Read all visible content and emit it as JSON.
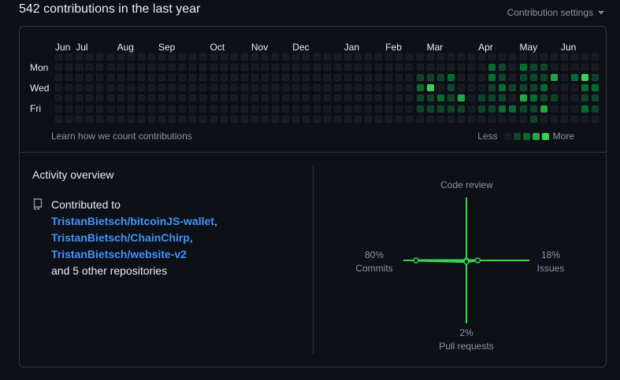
{
  "header": {
    "title": "542 contributions in the last year",
    "settings_label": "Contribution settings"
  },
  "calendar": {
    "months": [
      "Jun",
      "Jul",
      "Aug",
      "Sep",
      "Oct",
      "Nov",
      "Dec",
      "Jan",
      "Feb",
      "Mar",
      "Apr",
      "May",
      "Jun"
    ],
    "month_weeks": [
      0,
      2,
      6,
      10,
      15,
      19,
      23,
      28,
      32,
      36,
      41,
      45,
      49
    ],
    "days": [
      "Mon",
      "Wed",
      "Fri"
    ],
    "weeks": 53,
    "levels": [
      [
        0,
        0,
        0,
        0,
        0,
        0,
        0
      ],
      [
        0,
        0,
        0,
        0,
        0,
        0,
        0
      ],
      [
        0,
        0,
        0,
        0,
        0,
        0,
        0
      ],
      [
        0,
        0,
        0,
        0,
        0,
        0,
        0
      ],
      [
        0,
        0,
        0,
        0,
        0,
        0,
        0
      ],
      [
        0,
        0,
        0,
        0,
        0,
        0,
        0
      ],
      [
        0,
        0,
        0,
        0,
        0,
        0,
        0
      ],
      [
        0,
        0,
        0,
        0,
        0,
        0,
        0
      ],
      [
        0,
        0,
        0,
        0,
        0,
        0,
        0
      ],
      [
        0,
        0,
        0,
        0,
        0,
        0,
        0
      ],
      [
        0,
        0,
        0,
        0,
        0,
        0,
        0
      ],
      [
        0,
        0,
        0,
        0,
        0,
        0,
        0
      ],
      [
        0,
        0,
        0,
        0,
        0,
        0,
        0
      ],
      [
        0,
        0,
        0,
        0,
        0,
        0,
        0
      ],
      [
        0,
        0,
        0,
        0,
        0,
        0,
        0
      ],
      [
        0,
        0,
        0,
        0,
        0,
        0,
        0
      ],
      [
        0,
        0,
        0,
        0,
        0,
        0,
        0
      ],
      [
        0,
        0,
        0,
        0,
        0,
        0,
        0
      ],
      [
        0,
        0,
        0,
        0,
        0,
        0,
        0
      ],
      [
        0,
        0,
        0,
        0,
        0,
        0,
        0
      ],
      [
        0,
        0,
        0,
        0,
        0,
        0,
        0
      ],
      [
        0,
        0,
        0,
        0,
        0,
        0,
        0
      ],
      [
        0,
        0,
        0,
        0,
        0,
        0,
        0
      ],
      [
        0,
        0,
        0,
        0,
        0,
        0,
        0
      ],
      [
        0,
        0,
        0,
        0,
        0,
        0,
        0
      ],
      [
        0,
        0,
        0,
        0,
        0,
        0,
        0
      ],
      [
        0,
        0,
        0,
        0,
        0,
        0,
        0
      ],
      [
        0,
        0,
        0,
        0,
        0,
        0,
        0
      ],
      [
        0,
        0,
        0,
        0,
        0,
        0,
        0
      ],
      [
        0,
        0,
        0,
        0,
        0,
        0,
        0
      ],
      [
        0,
        0,
        0,
        0,
        0,
        0,
        0
      ],
      [
        0,
        0,
        0,
        0,
        0,
        0,
        0
      ],
      [
        0,
        0,
        0,
        0,
        0,
        0,
        0
      ],
      [
        0,
        0,
        0,
        0,
        0,
        0,
        0
      ],
      [
        0,
        0,
        0,
        0,
        0,
        0,
        0
      ],
      [
        0,
        0,
        1,
        2,
        1,
        1,
        0
      ],
      [
        0,
        0,
        1,
        4,
        1,
        1,
        0
      ],
      [
        0,
        0,
        1,
        0,
        2,
        1,
        0
      ],
      [
        0,
        0,
        2,
        1,
        1,
        1,
        0
      ],
      [
        0,
        0,
        0,
        0,
        3,
        1,
        0
      ],
      [
        0,
        0,
        0,
        0,
        0,
        0,
        0
      ],
      [
        0,
        0,
        0,
        0,
        1,
        1,
        0
      ],
      [
        0,
        2,
        2,
        1,
        1,
        1,
        0
      ],
      [
        0,
        1,
        1,
        2,
        1,
        2,
        0
      ],
      [
        0,
        0,
        0,
        1,
        0,
        2,
        0
      ],
      [
        0,
        2,
        1,
        1,
        3,
        1,
        0
      ],
      [
        0,
        1,
        1,
        1,
        2,
        1,
        1
      ],
      [
        0,
        1,
        1,
        2,
        1,
        3,
        0
      ],
      [
        0,
        0,
        3,
        0,
        1,
        0,
        0
      ],
      [
        0,
        0,
        0,
        0,
        0,
        0,
        0
      ],
      [
        0,
        0,
        2,
        0,
        0,
        0,
        0
      ],
      [
        0,
        0,
        4,
        2,
        1,
        2,
        0
      ],
      [
        0,
        0,
        1,
        2,
        1,
        1,
        0
      ]
    ],
    "colors": [
      "#161b22",
      "#0e4429",
      "#006d32",
      "#26a641",
      "#39d353"
    ],
    "learn_label": "Learn how we count contributions",
    "legend_less": "Less",
    "legend_more": "More"
  },
  "activity": {
    "title": "Activity overview",
    "repo_icon": "repo-icon",
    "contributed_prefix": "Contributed to",
    "repos": [
      "TristanBietsch/bitcoinJS-wallet",
      "TristanBietsch/ChainChirp",
      "TristanBietsch/website-v2"
    ],
    "other_repos": "and 5 other repositories",
    "radar": {
      "code_review": {
        "label": "Code review",
        "pct": "",
        "value": 0
      },
      "commits": {
        "label": "Commits",
        "pct": "80%",
        "value": 80
      },
      "issues": {
        "label": "Issues",
        "pct": "18%",
        "value": 18
      },
      "pull_requests": {
        "label": "Pull requests",
        "pct": "2%",
        "value": 2
      },
      "accent": "#39d353"
    }
  }
}
